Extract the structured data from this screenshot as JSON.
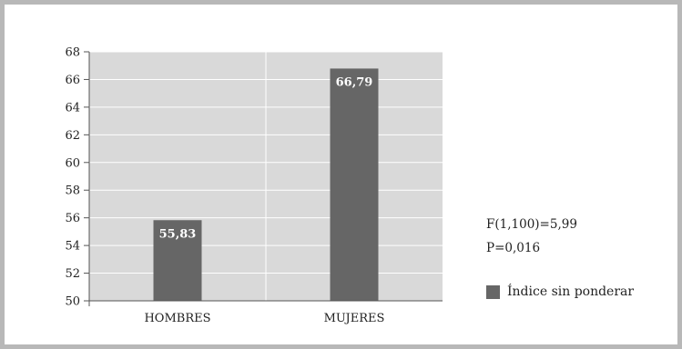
{
  "chart_data": {
    "type": "bar",
    "categories": [
      "HOMBRES",
      "MUJERES"
    ],
    "series": [
      {
        "name": "Índice sin ponderar",
        "values": [
          55.83,
          66.79
        ]
      }
    ],
    "data_labels": [
      "55,83",
      "66,79"
    ],
    "yticks": [
      "50",
      "52",
      "54",
      "56",
      "58",
      "60",
      "62",
      "64",
      "66",
      "68"
    ],
    "ytick_values": [
      50,
      52,
      54,
      56,
      58,
      60,
      62,
      64,
      66,
      68
    ],
    "ylim": [
      50,
      68
    ],
    "title": "",
    "xlabel": "",
    "ylabel": "",
    "grid": true,
    "legend_placement": "right",
    "bar_color": "#666666",
    "plot_background": "#d9d9d9",
    "grid_color": "#ffffff"
  },
  "annotations": {
    "stat_f": "F(1,100)=5,99",
    "stat_p": "P=0,016"
  },
  "legend": {
    "label": "Índice sin ponderar",
    "color": "#666666"
  }
}
